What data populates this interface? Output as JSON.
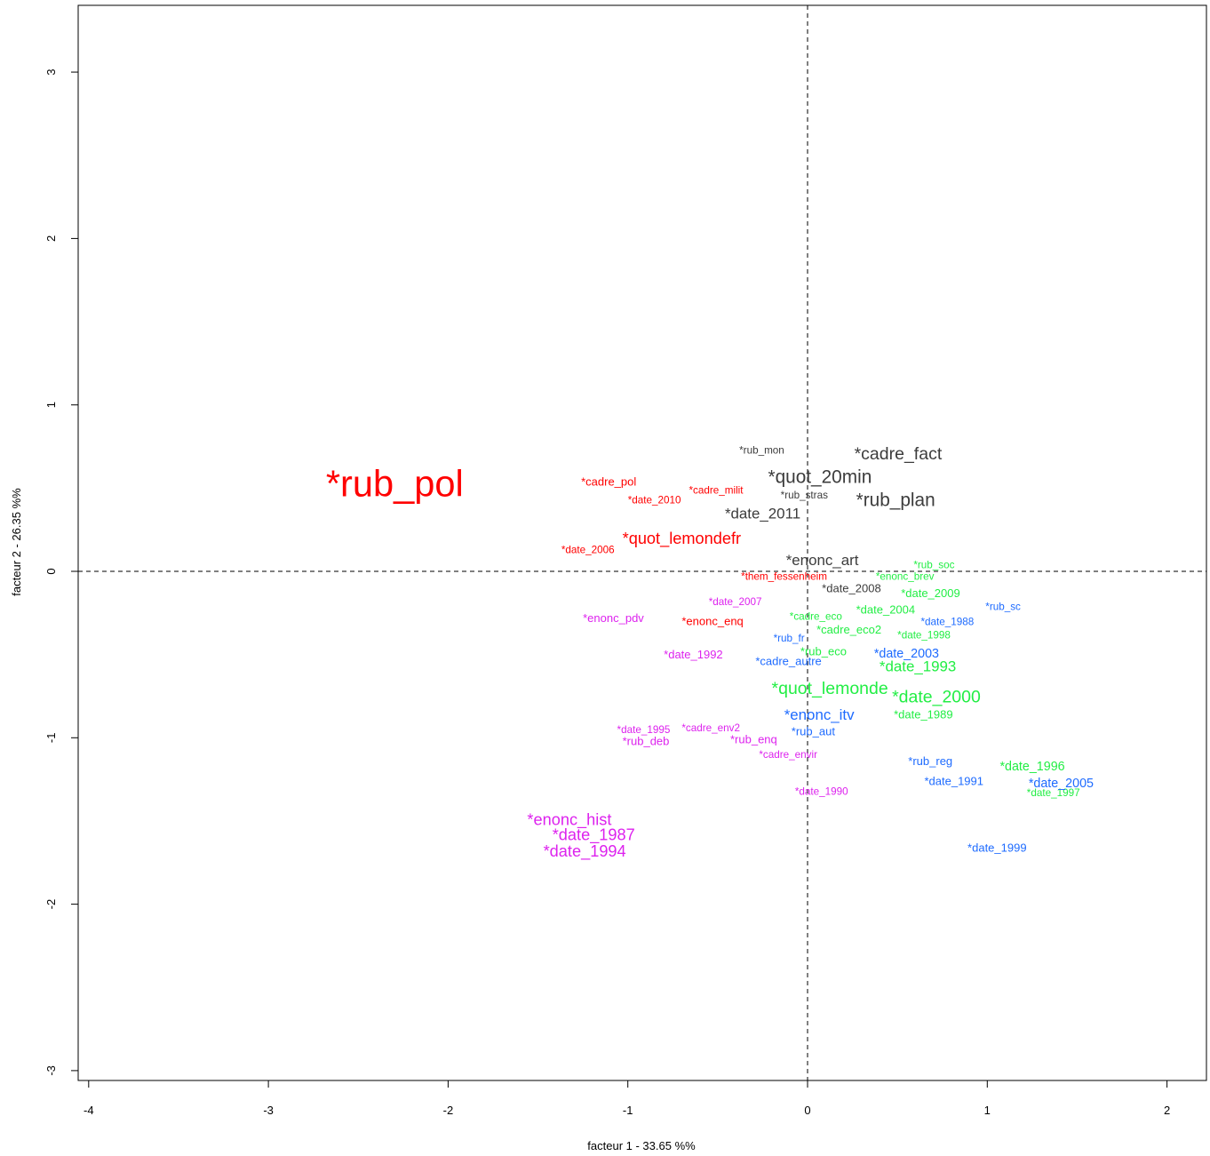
{
  "chart_data": {
    "type": "scatter",
    "title": "",
    "xlabel": "facteur  1  - 33.65 %%",
    "ylabel": "facteur  2  - 26.35 %%",
    "xlim": [
      -4.05,
      2.2
    ],
    "ylim": [
      -3.1,
      3.4
    ],
    "xticks": [
      -4,
      -3,
      -2,
      -1,
      0,
      1,
      2
    ],
    "yticks": [
      -3,
      -2,
      -1,
      0,
      1,
      2,
      3
    ],
    "reference_lines": {
      "x": 0,
      "y": 0,
      "style": "dashed"
    },
    "colors": {
      "red": "#ff0000",
      "gray": "#3c3c3c",
      "green": "#22ee44",
      "blue": "#1e6bff",
      "magenta": "#dd22ee"
    },
    "points": [
      {
        "label": "*rub_pol",
        "x": -2.68,
        "y": 0.53,
        "size": 3.2,
        "color": "red"
      },
      {
        "label": "*cadre_pol",
        "x": -1.26,
        "y": 0.54,
        "size": 1.0,
        "color": "red"
      },
      {
        "label": "*cadre_milit",
        "x": -0.66,
        "y": 0.49,
        "size": 0.9,
        "color": "red"
      },
      {
        "label": "*date_2010",
        "x": -1.0,
        "y": 0.43,
        "size": 0.9,
        "color": "red"
      },
      {
        "label": "*quot_lemondefr",
        "x": -1.03,
        "y": 0.2,
        "size": 1.4,
        "color": "red"
      },
      {
        "label": "*date_2006",
        "x": -1.37,
        "y": 0.13,
        "size": 0.9,
        "color": "red"
      },
      {
        "label": "*them_fessenheim",
        "x": -0.37,
        "y": -0.03,
        "size": 0.9,
        "color": "red"
      },
      {
        "label": "*enonc_enq",
        "x": -0.7,
        "y": -0.3,
        "size": 1.0,
        "color": "red"
      },
      {
        "label": "*rub_mon",
        "x": -0.38,
        "y": 0.73,
        "size": 0.9,
        "color": "gray"
      },
      {
        "label": "*cadre_fact",
        "x": 0.26,
        "y": 0.71,
        "size": 1.5,
        "color": "gray"
      },
      {
        "label": "*quot_20min",
        "x": -0.22,
        "y": 0.57,
        "size": 1.6,
        "color": "gray"
      },
      {
        "label": "*rub_stras",
        "x": -0.15,
        "y": 0.46,
        "size": 0.9,
        "color": "gray"
      },
      {
        "label": "*rub_plan",
        "x": 0.27,
        "y": 0.43,
        "size": 1.6,
        "color": "gray"
      },
      {
        "label": "*date_2011",
        "x": -0.46,
        "y": 0.35,
        "size": 1.3,
        "color": "gray"
      },
      {
        "label": "*enonc_art",
        "x": -0.12,
        "y": 0.07,
        "size": 1.3,
        "color": "gray"
      },
      {
        "label": "*date_2008",
        "x": 0.08,
        "y": -0.1,
        "size": 1.0,
        "color": "gray"
      },
      {
        "label": "*rub_soc",
        "x": 0.59,
        "y": 0.04,
        "size": 0.9,
        "color": "green"
      },
      {
        "label": "*enonc_brev",
        "x": 0.38,
        "y": -0.03,
        "size": 0.9,
        "color": "green"
      },
      {
        "label": "*date_2009",
        "x": 0.52,
        "y": -0.13,
        "size": 1.0,
        "color": "green"
      },
      {
        "label": "*date_2004",
        "x": 0.27,
        "y": -0.23,
        "size": 1.0,
        "color": "green"
      },
      {
        "label": "*cadre_eco",
        "x": -0.1,
        "y": -0.27,
        "size": 0.9,
        "color": "green"
      },
      {
        "label": "*cadre_eco2",
        "x": 0.05,
        "y": -0.35,
        "size": 1.0,
        "color": "green"
      },
      {
        "label": "*date_1998",
        "x": 0.5,
        "y": -0.38,
        "size": 0.9,
        "color": "green"
      },
      {
        "label": "*rub_eco",
        "x": -0.04,
        "y": -0.48,
        "size": 1.0,
        "color": "green"
      },
      {
        "label": "*date_1993",
        "x": 0.4,
        "y": -0.57,
        "size": 1.3,
        "color": "green"
      },
      {
        "label": "*quot_lemonde",
        "x": -0.2,
        "y": -0.7,
        "size": 1.5,
        "color": "green"
      },
      {
        "label": "*date_2000",
        "x": 0.47,
        "y": -0.75,
        "size": 1.5,
        "color": "green"
      },
      {
        "label": "*date_1989",
        "x": 0.48,
        "y": -0.86,
        "size": 1.0,
        "color": "green"
      },
      {
        "label": "*date_1996",
        "x": 1.07,
        "y": -1.17,
        "size": 1.1,
        "color": "green"
      },
      {
        "label": "*date_1997",
        "x": 1.22,
        "y": -1.33,
        "size": 0.9,
        "color": "green"
      },
      {
        "label": "*rub_sc",
        "x": 0.99,
        "y": -0.21,
        "size": 0.9,
        "color": "blue"
      },
      {
        "label": "*date_1988",
        "x": 0.63,
        "y": -0.3,
        "size": 0.9,
        "color": "blue"
      },
      {
        "label": "*rub_fr",
        "x": -0.19,
        "y": -0.4,
        "size": 0.9,
        "color": "blue"
      },
      {
        "label": "*date_2003",
        "x": 0.37,
        "y": -0.49,
        "size": 1.1,
        "color": "blue"
      },
      {
        "label": "*cadre_autre",
        "x": -0.29,
        "y": -0.54,
        "size": 1.0,
        "color": "blue"
      },
      {
        "label": "*enonc_itv",
        "x": -0.13,
        "y": -0.86,
        "size": 1.3,
        "color": "blue"
      },
      {
        "label": "*rub_aut",
        "x": -0.09,
        "y": -0.96,
        "size": 1.0,
        "color": "blue"
      },
      {
        "label": "*rub_reg",
        "x": 0.56,
        "y": -1.14,
        "size": 1.0,
        "color": "blue"
      },
      {
        "label": "*date_1991",
        "x": 0.65,
        "y": -1.26,
        "size": 1.0,
        "color": "blue"
      },
      {
        "label": "*date_2005",
        "x": 1.23,
        "y": -1.27,
        "size": 1.1,
        "color": "blue"
      },
      {
        "label": "*date_1999",
        "x": 0.89,
        "y": -1.66,
        "size": 1.0,
        "color": "blue"
      },
      {
        "label": "*date_2007",
        "x": -0.55,
        "y": -0.18,
        "size": 0.9,
        "color": "magenta"
      },
      {
        "label": "*enonc_pdv",
        "x": -1.25,
        "y": -0.28,
        "size": 1.0,
        "color": "magenta"
      },
      {
        "label": "*date_1992",
        "x": -0.8,
        "y": -0.5,
        "size": 1.0,
        "color": "magenta"
      },
      {
        "label": "*date_1995",
        "x": -1.06,
        "y": -0.95,
        "size": 0.9,
        "color": "magenta"
      },
      {
        "label": "*cadre_env2",
        "x": -0.7,
        "y": -0.94,
        "size": 0.9,
        "color": "magenta"
      },
      {
        "label": "*rub_deb",
        "x": -1.03,
        "y": -1.02,
        "size": 1.0,
        "color": "magenta"
      },
      {
        "label": "*rub_enq",
        "x": -0.43,
        "y": -1.01,
        "size": 1.0,
        "color": "magenta"
      },
      {
        "label": "*cadre_envir",
        "x": -0.27,
        "y": -1.1,
        "size": 0.9,
        "color": "magenta"
      },
      {
        "label": "*date_1990",
        "x": -0.07,
        "y": -1.32,
        "size": 0.9,
        "color": "magenta"
      },
      {
        "label": "*enonc_hist",
        "x": -1.56,
        "y": -1.49,
        "size": 1.4,
        "color": "magenta"
      },
      {
        "label": "*date_1987",
        "x": -1.42,
        "y": -1.58,
        "size": 1.4,
        "color": "magenta"
      },
      {
        "label": "*date_1994",
        "x": -1.47,
        "y": -1.68,
        "size": 1.4,
        "color": "magenta"
      }
    ]
  }
}
